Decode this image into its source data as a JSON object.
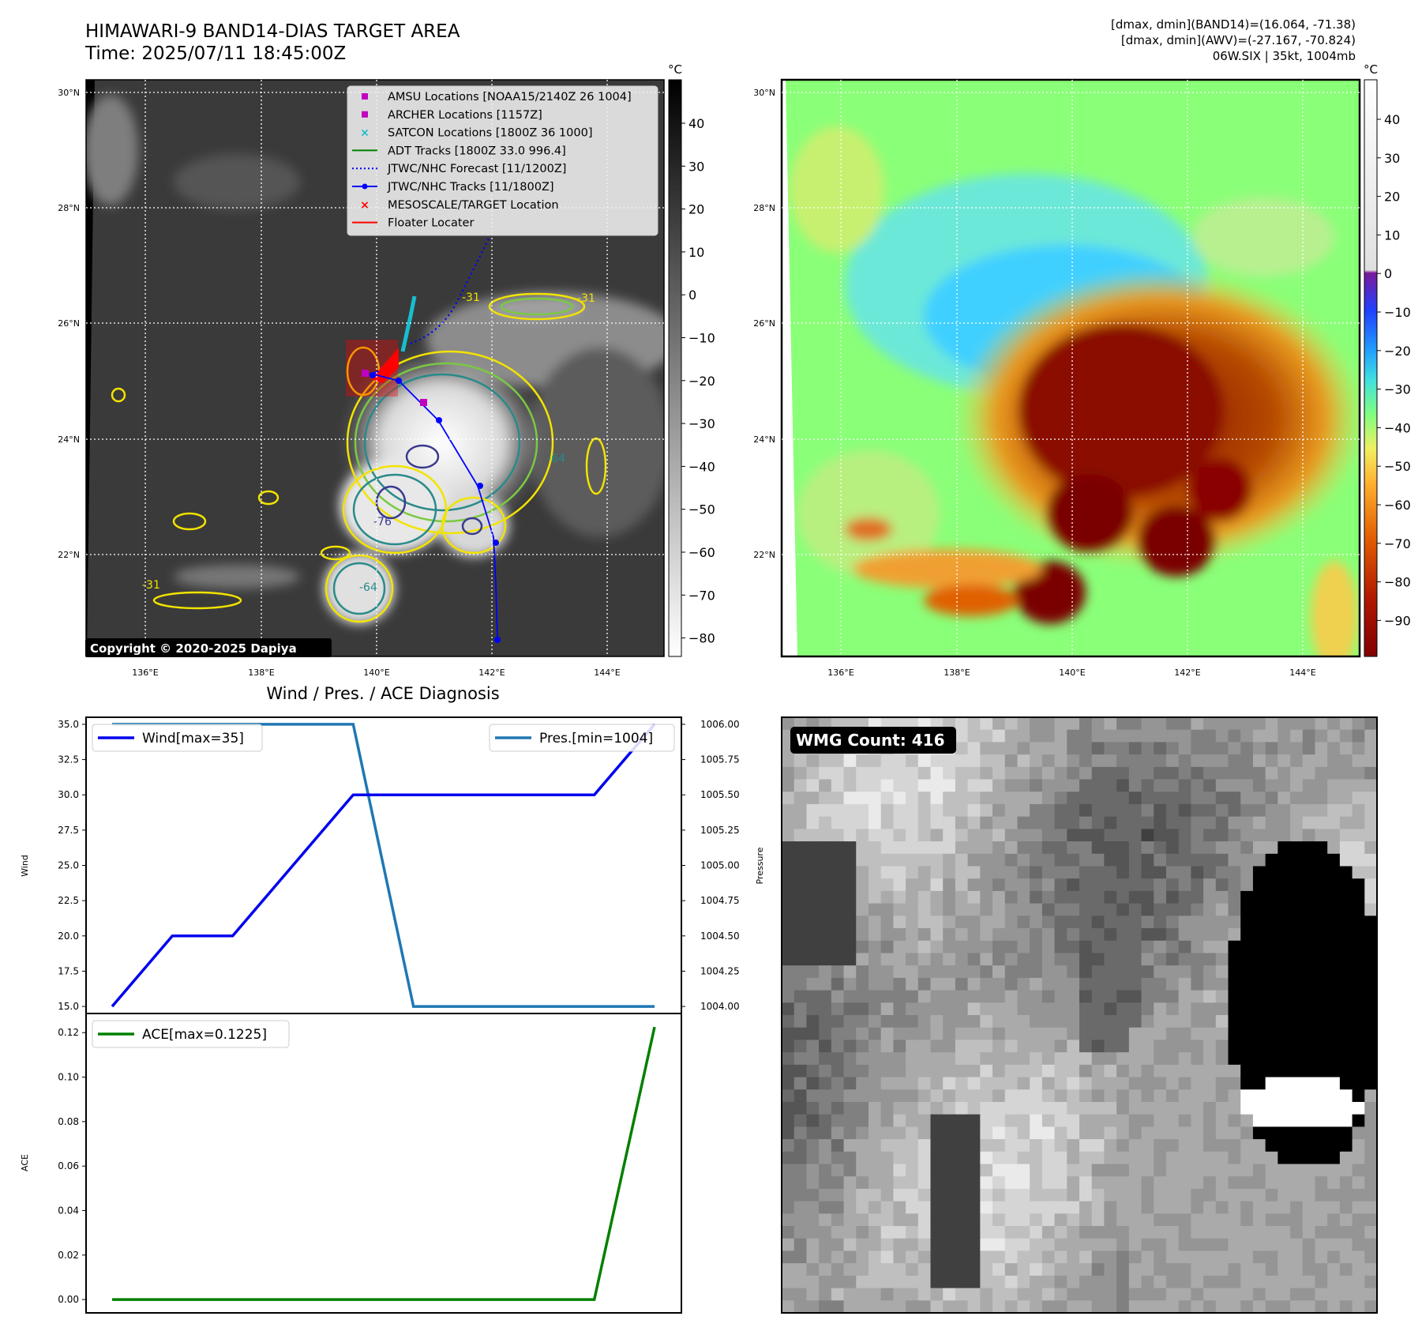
{
  "header": {
    "title_line1": "HIMAWARI-9 BAND14-DIAS TARGET AREA",
    "title_line2": "Time: 2025/07/11 18:45:00Z",
    "info_line1": "[dmax, dmin](BAND14)=(16.064, -71.38)",
    "info_line2": "[dmax, dmin](AWV)=(-27.167, -70.824)",
    "info_line3": "06W.SIX | 35kt, 1004mb"
  },
  "colors": {
    "wind": "#0000ee",
    "pressure": "#1f77b4",
    "ace": "#008000",
    "forecast": "#0000ff",
    "adt": "#008000",
    "amsu": "#bf00bf",
    "satcon": "#17becf",
    "target": "#ff0000"
  },
  "maps": {
    "lat_labels": [
      "30°N",
      "28°N",
      "26°N",
      "24°N",
      "22°N"
    ],
    "lon_labels": [
      "136°E",
      "138°E",
      "140°E",
      "142°E",
      "144°E"
    ],
    "copyright": "Copyright © 2020-2025 Dapiya",
    "legend": [
      {
        "symbol": "square",
        "color": "#bf00bf",
        "label": "AMSU Locations [NOAA15/2140Z 26 1004]"
      },
      {
        "symbol": "square",
        "color": "#bf00bf",
        "label": "ARCHER Locations [1157Z]"
      },
      {
        "symbol": "x",
        "color": "#17becf",
        "label": "SATCON Locations [1800Z 36 1000]"
      },
      {
        "symbol": "line",
        "color": "#008000",
        "label": "ADT Tracks [1800Z 33.0 996.4]"
      },
      {
        "symbol": "dotted",
        "color": "#0000ff",
        "label": "JTWC/NHC Forecast [11/1200Z]"
      },
      {
        "symbol": "linedot",
        "color": "#0000ff",
        "label": "JTWC/NHC Tracks [11/1800Z]"
      },
      {
        "symbol": "x",
        "color": "#ff0000",
        "label": "MESOSCALE/TARGET Location"
      },
      {
        "symbol": "line",
        "color": "#ff0000",
        "label": "Floater Locater"
      }
    ],
    "unit": "°C",
    "cbar1_ticks": [
      "40",
      "30",
      "20",
      "10",
      "0",
      "−10",
      "−20",
      "−30",
      "−40",
      "−50",
      "−60",
      "−70",
      "−80"
    ],
    "cbar2_ticks": [
      "40",
      "30",
      "20",
      "10",
      "0",
      "−10",
      "−20",
      "−30",
      "−40",
      "−50",
      "−60",
      "−70",
      "−80",
      "−90"
    ],
    "contour_labels": [
      "-31",
      "-31",
      "-64",
      "-76",
      "-31",
      "-64"
    ]
  },
  "panel4": {
    "badge": "WMG Count: 416",
    "ylabel": "Pressure"
  },
  "chart_data": [
    {
      "type": "line",
      "title": "Wind / Pres. / ACE Diagnosis",
      "ylabel": "Wind",
      "x": [
        0,
        1,
        2,
        3,
        4,
        5,
        6,
        7,
        8,
        9
      ],
      "series": [
        {
          "name": "Wind[max=35]",
          "axis": "left",
          "values": [
            15,
            20,
            20,
            25,
            30,
            30,
            30,
            30,
            30,
            35
          ]
        },
        {
          "name": "Pres.[min=1004]",
          "axis": "right",
          "values": [
            1006,
            1006,
            1006,
            1006,
            1006,
            1004,
            1004,
            1004,
            1004,
            1004
          ]
        }
      ],
      "ylim": [
        14.5,
        35.5
      ],
      "y2lim": [
        1003.95,
        1006.05
      ],
      "yticks": [
        "15.0",
        "17.5",
        "20.0",
        "22.5",
        "25.0",
        "27.5",
        "30.0",
        "32.5",
        "35.0"
      ],
      "y2ticks": [
        "1004.00",
        "1004.25",
        "1004.50",
        "1004.75",
        "1005.00",
        "1005.25",
        "1005.50",
        "1005.75",
        "1006.00"
      ]
    },
    {
      "type": "line",
      "ylabel": "ACE",
      "x": [
        0,
        1,
        2,
        3,
        4,
        5,
        6,
        7,
        8,
        9
      ],
      "series": [
        {
          "name": "ACE[max=0.1225]",
          "values": [
            0,
            0,
            0,
            0,
            0,
            0,
            0,
            0,
            0,
            0.1225
          ]
        }
      ],
      "ylim": [
        -0.006,
        0.1286
      ],
      "yticks": [
        "0.00",
        "0.02",
        "0.04",
        "0.06",
        "0.08",
        "0.10",
        "0.12"
      ]
    }
  ]
}
